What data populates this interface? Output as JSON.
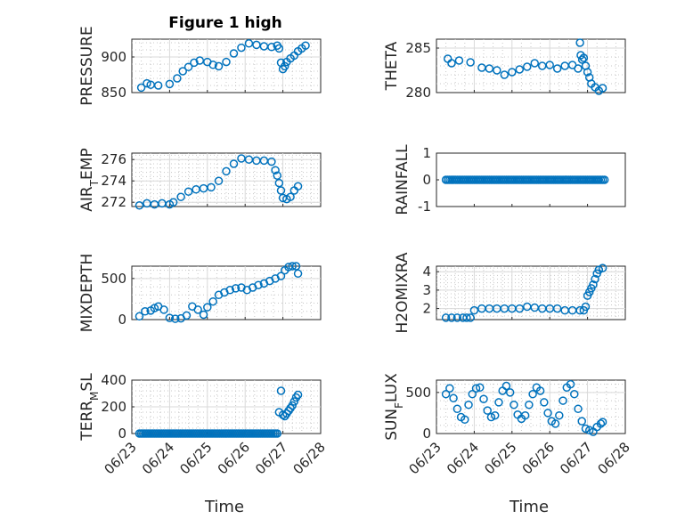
{
  "figure": {
    "title": "Figure 1 high",
    "xlabel": "Time",
    "marker_color": "#0072BD",
    "xticklabels": [
      "06/23",
      "06/24",
      "06/25",
      "06/26",
      "06/27",
      "06/28"
    ]
  },
  "chart_data": [
    {
      "id": "pressure",
      "type": "scatter",
      "ylabel_main": "PRESSURE",
      "ylabel_sub": "",
      "ylim": [
        850,
        925
      ],
      "yticks": [
        850,
        900
      ],
      "yticklabels": [
        "850",
        "900"
      ],
      "grid": true,
      "xlim": [
        0,
        5
      ],
      "xtick_dates": [
        "06/23",
        "06/24",
        "06/25",
        "06/26",
        "06/27",
        "06/28"
      ],
      "x": [
        0.25,
        0.4,
        0.5,
        0.7,
        1.0,
        1.2,
        1.35,
        1.5,
        1.65,
        1.8,
        2.0,
        2.15,
        2.3,
        2.5,
        2.7,
        2.9,
        3.1,
        3.3,
        3.5,
        3.7,
        3.85,
        3.9,
        3.95,
        4.0,
        4.05,
        4.1,
        4.2,
        4.3,
        4.4,
        4.5,
        4.6
      ],
      "y": [
        857,
        863,
        861,
        860,
        862,
        870,
        880,
        886,
        892,
        895,
        893,
        889,
        887,
        893,
        905,
        913,
        919,
        917,
        915,
        914,
        916,
        912,
        892,
        883,
        887,
        893,
        898,
        902,
        908,
        912,
        916
      ]
    },
    {
      "id": "theta",
      "type": "scatter",
      "ylabel_main": "THETA",
      "ylabel_sub": "",
      "ylim": [
        280,
        286
      ],
      "yticks": [
        280,
        285
      ],
      "yticklabels": [
        "280",
        "285"
      ],
      "grid": true,
      "x": [
        0.3,
        0.4,
        0.6,
        0.9,
        1.2,
        1.4,
        1.6,
        1.8,
        2.0,
        2.2,
        2.4,
        2.6,
        2.8,
        3.0,
        3.2,
        3.4,
        3.6,
        3.75,
        3.8,
        3.82,
        3.86,
        3.9,
        3.95,
        4.0,
        4.05,
        4.1,
        4.2,
        4.3,
        4.4
      ],
      "y": [
        283.8,
        283.3,
        283.6,
        283.4,
        282.8,
        282.7,
        282.5,
        282.0,
        282.3,
        282.6,
        282.9,
        283.3,
        283.0,
        283.1,
        282.7,
        283.0,
        283.1,
        282.7,
        285.6,
        284.2,
        283.7,
        283.9,
        283.0,
        282.3,
        281.7,
        281.0,
        280.6,
        280.2,
        280.5
      ]
    },
    {
      "id": "air_temp",
      "type": "scatter",
      "ylabel_main": "AIR",
      "ylabel_sub": "T",
      "ylabel_rest": "EMP",
      "ylim": [
        271.6,
        276.6
      ],
      "yticks": [
        272,
        274,
        276
      ],
      "yticklabels": [
        "272",
        "274",
        "276"
      ],
      "grid": true,
      "x": [
        0.2,
        0.4,
        0.6,
        0.8,
        1.0,
        1.1,
        1.3,
        1.5,
        1.7,
        1.9,
        2.1,
        2.3,
        2.5,
        2.7,
        2.9,
        3.1,
        3.3,
        3.5,
        3.7,
        3.8,
        3.85,
        3.9,
        3.95,
        4.0,
        4.1,
        4.2,
        4.3,
        4.4
      ],
      "y": [
        271.7,
        271.9,
        271.8,
        271.9,
        271.8,
        272.0,
        272.5,
        273.0,
        273.2,
        273.3,
        273.4,
        274.0,
        274.9,
        275.6,
        276.1,
        276.0,
        275.9,
        275.9,
        275.8,
        275.0,
        274.5,
        273.8,
        273.1,
        272.4,
        272.3,
        272.5,
        273.1,
        273.5
      ]
    },
    {
      "id": "rainfall",
      "type": "scatter",
      "ylabel_main": "RAINFALL",
      "ylabel_sub": "",
      "ylim": [
        -1,
        1
      ],
      "yticks": [
        -1,
        0,
        1
      ],
      "yticklabels": [
        "-1",
        "0",
        "1"
      ],
      "grid": false,
      "x_start": 0.25,
      "x_end": 4.45,
      "x_count": 85,
      "value": 0
    },
    {
      "id": "mixdepth",
      "type": "scatter",
      "ylabel_main": "MIXDEPTH",
      "ylabel_sub": "",
      "ylim": [
        0,
        650
      ],
      "yticks": [
        0,
        500
      ],
      "yticklabels": [
        "0",
        "500"
      ],
      "grid": true,
      "x": [
        0.2,
        0.35,
        0.5,
        0.6,
        0.7,
        0.85,
        1.0,
        1.15,
        1.3,
        1.45,
        1.6,
        1.75,
        1.9,
        2.0,
        2.15,
        2.3,
        2.45,
        2.6,
        2.75,
        2.9,
        3.05,
        3.2,
        3.35,
        3.5,
        3.65,
        3.8,
        3.95,
        4.05,
        4.15,
        4.25,
        4.35,
        4.4
      ],
      "y": [
        40,
        100,
        110,
        140,
        160,
        120,
        20,
        10,
        15,
        50,
        160,
        120,
        60,
        150,
        220,
        300,
        330,
        360,
        380,
        390,
        360,
        390,
        420,
        440,
        470,
        500,
        530,
        600,
        640,
        650,
        650,
        560
      ]
    },
    {
      "id": "h2omixra",
      "type": "scatter",
      "ylabel_main": "H2OMIXRA",
      "ylabel_sub": "",
      "ylim": [
        1.4,
        4.3
      ],
      "yticks": [
        2,
        3,
        4
      ],
      "yticklabels": [
        "2",
        "3",
        "4"
      ],
      "grid": true,
      "x": [
        0.25,
        0.4,
        0.55,
        0.7,
        0.8,
        0.9,
        1.0,
        1.2,
        1.4,
        1.6,
        1.8,
        2.0,
        2.2,
        2.4,
        2.6,
        2.8,
        3.0,
        3.2,
        3.4,
        3.6,
        3.8,
        3.9,
        3.95,
        4.0,
        4.05,
        4.1,
        4.15,
        4.2,
        4.25,
        4.3,
        4.4
      ],
      "y": [
        1.5,
        1.5,
        1.5,
        1.5,
        1.5,
        1.5,
        1.9,
        2.0,
        2.0,
        2.0,
        2.0,
        2.0,
        2.0,
        2.1,
        2.05,
        2.0,
        2.0,
        2.0,
        1.9,
        1.9,
        1.9,
        1.9,
        2.1,
        2.7,
        2.9,
        3.1,
        3.3,
        3.6,
        3.9,
        4.1,
        4.2
      ]
    },
    {
      "id": "terr_msl",
      "type": "scatter",
      "ylabel_main": "TERR",
      "ylabel_sub": "M",
      "ylabel_rest": "SL",
      "ylim": [
        0,
        400
      ],
      "yticks": [
        0,
        200,
        400
      ],
      "yticklabels": [
        "0",
        "200",
        "400"
      ],
      "grid": true,
      "x_start": 0.2,
      "x_end": 3.85,
      "x_count": 75,
      "value": 0,
      "x": [
        3.9,
        3.95,
        4.0,
        4.05,
        4.1,
        4.15,
        4.2,
        4.25,
        4.3,
        4.35,
        4.4
      ],
      "y": [
        160,
        320,
        140,
        130,
        150,
        170,
        190,
        210,
        240,
        270,
        290
      ]
    },
    {
      "id": "sun_flux",
      "type": "scatter",
      "ylabel_main": "SUN",
      "ylabel_sub": "F",
      "ylabel_rest": "LUX",
      "ylim": [
        0,
        650
      ],
      "yticks": [
        0,
        500
      ],
      "yticklabels": [
        "0",
        "500"
      ],
      "grid": true,
      "x": [
        0.25,
        0.35,
        0.45,
        0.55,
        0.65,
        0.75,
        0.85,
        0.95,
        1.05,
        1.15,
        1.25,
        1.35,
        1.45,
        1.55,
        1.65,
        1.75,
        1.85,
        1.95,
        2.05,
        2.15,
        2.25,
        2.35,
        2.45,
        2.55,
        2.65,
        2.75,
        2.85,
        2.95,
        3.05,
        3.15,
        3.25,
        3.35,
        3.45,
        3.55,
        3.65,
        3.75,
        3.85,
        3.95,
        4.05,
        4.15,
        4.25,
        4.35,
        4.4
      ],
      "y": [
        480,
        550,
        430,
        300,
        200,
        170,
        350,
        480,
        550,
        560,
        420,
        280,
        200,
        220,
        380,
        520,
        580,
        500,
        350,
        230,
        180,
        220,
        350,
        480,
        560,
        520,
        380,
        250,
        150,
        120,
        220,
        400,
        560,
        600,
        480,
        300,
        150,
        60,
        40,
        20,
        80,
        120,
        140
      ]
    }
  ]
}
